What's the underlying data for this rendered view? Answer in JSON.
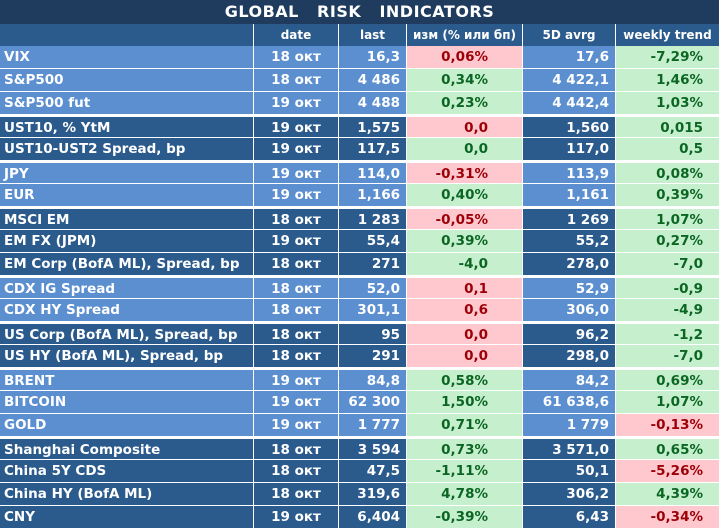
{
  "title": "GLOBAL   RISK   INDICATORS",
  "header": {
    "name": "",
    "date": "date",
    "last": "last",
    "change": "изм (% или бп)",
    "avg": "5D avrg",
    "trend": "weekly trend"
  },
  "colors": {
    "title_bg": "#1f3c5e",
    "dark_row": "#2b5a8c",
    "light_row": "#5b8fd0",
    "positive_bg": "#c6efce",
    "positive_text": "#0b6623",
    "negative_bg": "#ffc7ce",
    "negative_text": "#9c0006"
  },
  "rows": [
    {
      "name": "VIX",
      "date": "18 окт",
      "last": "16,3",
      "change": "0,06%",
      "change_state": "neg",
      "avg": "17,6",
      "trend": "-7,29%",
      "trend_state": "pos",
      "shade": "light",
      "sep": false
    },
    {
      "name": "S&P500",
      "date": "18 окт",
      "last": "4 486",
      "change": "0,34%",
      "change_state": "pos",
      "avg": "4 422,1",
      "trend": "1,46%",
      "trend_state": "pos",
      "shade": "light",
      "sep": false
    },
    {
      "name": "S&P500 fut",
      "date": "19 окт",
      "last": "4 488",
      "change": "0,23%",
      "change_state": "pos",
      "avg": "4 442,4",
      "trend": "1,03%",
      "trend_state": "pos",
      "shade": "light",
      "sep": false
    },
    {
      "name": "UST10, % YtM",
      "date": "19 окт",
      "last": "1,575",
      "change": "0,0",
      "change_state": "neg",
      "avg": "1,560",
      "trend": "0,015",
      "trend_state": "pos",
      "shade": "dark",
      "sep": true
    },
    {
      "name": "UST10-UST2 Spread, bp",
      "date": "19 окт",
      "last": "117,5",
      "change": "0,0",
      "change_state": "pos",
      "avg": "117,0",
      "trend": "0,5",
      "trend_state": "pos",
      "shade": "dark",
      "sep": false
    },
    {
      "name": "JPY",
      "date": "19 окт",
      "last": "114,0",
      "change": "-0,31%",
      "change_state": "neg",
      "avg": "113,9",
      "trend": "0,08%",
      "trend_state": "pos",
      "shade": "light",
      "sep": true
    },
    {
      "name": "EUR",
      "date": "19 окт",
      "last": "1,166",
      "change": "0,40%",
      "change_state": "pos",
      "avg": "1,161",
      "trend": "0,39%",
      "trend_state": "pos",
      "shade": "light",
      "sep": false
    },
    {
      "name": "MSCI EM",
      "date": "18 окт",
      "last": "1 283",
      "change": "-0,05%",
      "change_state": "neg",
      "avg": "1 269",
      "trend": "1,07%",
      "trend_state": "pos",
      "shade": "dark",
      "sep": true
    },
    {
      "name": "EM FX (JPM)",
      "date": "19 окт",
      "last": "55,4",
      "change": "0,39%",
      "change_state": "pos",
      "avg": "55,2",
      "trend": "0,27%",
      "trend_state": "pos",
      "shade": "dark",
      "sep": false
    },
    {
      "name": "EM Corp (BofA ML), Spread, bp",
      "date": "18 окт",
      "last": "271",
      "change": "-4,0",
      "change_state": "pos",
      "avg": "278,0",
      "trend": "-7,0",
      "trend_state": "pos",
      "shade": "dark",
      "sep": false
    },
    {
      "name": "CDX IG Spread",
      "date": "18 окт",
      "last": "52,0",
      "change": "0,1",
      "change_state": "neg",
      "avg": "52,9",
      "trend": "-0,9",
      "trend_state": "pos",
      "shade": "light",
      "sep": true
    },
    {
      "name": "CDX HY Spread",
      "date": "18 окт",
      "last": "301,1",
      "change": "0,6",
      "change_state": "neg",
      "avg": "306,0",
      "trend": "-4,9",
      "trend_state": "pos",
      "shade": "light",
      "sep": false
    },
    {
      "name": "US Corp (BofA ML), Spread, bp",
      "date": "18 окт",
      "last": "95",
      "change": "0,0",
      "change_state": "neg",
      "avg": "96,2",
      "trend": "-1,2",
      "trend_state": "pos",
      "shade": "dark",
      "sep": true
    },
    {
      "name": "US HY (BofA ML), Spread, bp",
      "date": "18 окт",
      "last": "291",
      "change": "0,0",
      "change_state": "neg",
      "avg": "298,0",
      "trend": "-7,0",
      "trend_state": "pos",
      "shade": "dark",
      "sep": false
    },
    {
      "name": "BRENT",
      "date": "19 окт",
      "last": "84,8",
      "change": "0,58%",
      "change_state": "pos",
      "avg": "84,2",
      "trend": "0,69%",
      "trend_state": "pos",
      "shade": "light",
      "sep": true
    },
    {
      "name": "BITCOIN",
      "date": "19 окт",
      "last": "62 300",
      "change": "1,50%",
      "change_state": "pos",
      "avg": "61 638,6",
      "trend": "1,07%",
      "trend_state": "pos",
      "shade": "light",
      "sep": false
    },
    {
      "name": "GOLD",
      "date": "19 окт",
      "last": "1 777",
      "change": "0,71%",
      "change_state": "pos",
      "avg": "1 779",
      "trend": "-0,13%",
      "trend_state": "neg",
      "shade": "light",
      "sep": false
    },
    {
      "name": "Shanghai Composite",
      "date": "18 окт",
      "last": "3 594",
      "change": "0,73%",
      "change_state": "pos",
      "avg": "3 571,0",
      "trend": "0,65%",
      "trend_state": "pos",
      "shade": "dark",
      "sep": true
    },
    {
      "name": "China 5Y CDS",
      "date": "18 окт",
      "last": "47,5",
      "change": "-1,11%",
      "change_state": "pos",
      "avg": "50,1",
      "trend": "-5,26%",
      "trend_state": "neg",
      "shade": "dark",
      "sep": false
    },
    {
      "name": "China HY (BofA ML)",
      "date": "18 окт",
      "last": "319,6",
      "change": "4,78%",
      "change_state": "pos",
      "avg": "306,2",
      "trend": "4,39%",
      "trend_state": "pos",
      "shade": "dark",
      "sep": false
    },
    {
      "name": "CNY",
      "date": "19 окт",
      "last": "6,404",
      "change": "-0,39%",
      "change_state": "pos",
      "avg": "6,43",
      "trend": "-0,34%",
      "trend_state": "neg",
      "shade": "dark",
      "sep": false
    }
  ]
}
